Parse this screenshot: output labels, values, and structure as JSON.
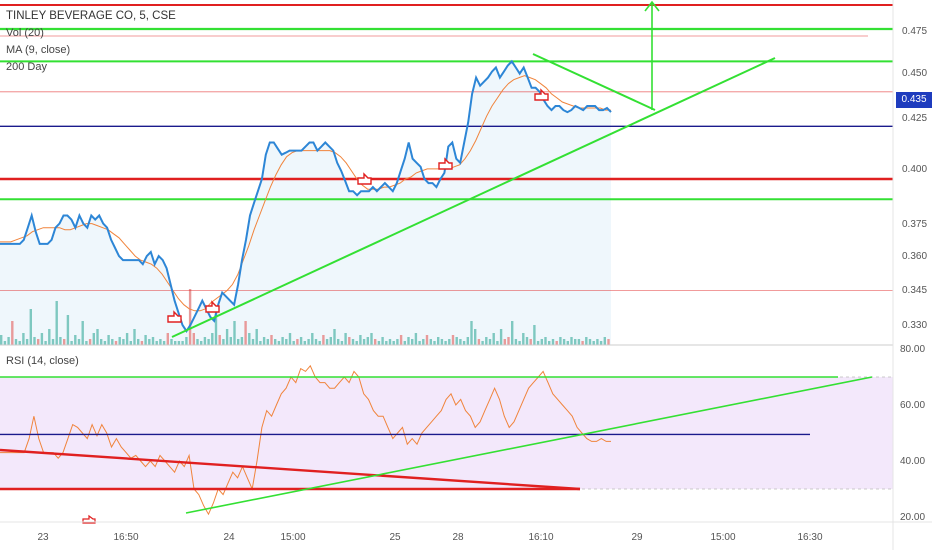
{
  "legend": {
    "title": "TINLEY BEVERAGE CO, 5, CSE",
    "vol": "Vol (20)",
    "ma": "MA (9, close)",
    "day200": "200 Day"
  },
  "rsi_label": "RSI (14, close)",
  "last_price_tag": "0.435",
  "colors": {
    "price_line": "#2d86d6",
    "ma_line": "#f0843c",
    "rsi_line": "#f0843c",
    "green": "#33e033",
    "red": "#e02020",
    "navy": "#1a1a8c",
    "volume_up": "#7ec8c0",
    "volume_down": "#e89a9a",
    "rsi_band": "#f3e8fb"
  },
  "chart_data": [
    {
      "type": "line",
      "title": "TINLEY BEVERAGE CO, 5, CSE",
      "x_labels": [
        "23",
        "16:50",
        "24",
        "15:00",
        "25",
        "28",
        "16:10",
        "29",
        "15:00",
        "16:30"
      ],
      "y_ticks": [
        "0.475",
        "0.450",
        "0.425",
        "0.400",
        "0.375",
        "0.360",
        "0.345",
        "0.330"
      ],
      "ylim": [
        0.322,
        0.483
      ],
      "series": [
        {
          "values": [
            0.37,
            0.37,
            0.37,
            0.37,
            0.37,
            0.37,
            0.372,
            0.378,
            0.384,
            0.376,
            0.37,
            0.37,
            0.37,
            0.372,
            0.378,
            0.38,
            0.384,
            0.384,
            0.382,
            0.378,
            0.384,
            0.38,
            0.378,
            0.384,
            0.382,
            0.384,
            0.38,
            0.378,
            0.372,
            0.368,
            0.364,
            0.362,
            0.362,
            0.362,
            0.362,
            0.362,
            0.36,
            0.364,
            0.366,
            0.36,
            0.364,
            0.362,
            0.358,
            0.35,
            0.342,
            0.336,
            0.33,
            0.327,
            0.33,
            0.334,
            0.338,
            0.342,
            0.338,
            0.334,
            0.332,
            0.34,
            0.346,
            0.344,
            0.342,
            0.34,
            0.35,
            0.362,
            0.372,
            0.384,
            0.39,
            0.396,
            0.402,
            0.414,
            0.42,
            0.42,
            0.417,
            0.414,
            0.415,
            0.416,
            0.416,
            0.416,
            0.416,
            0.418,
            0.42,
            0.42,
            0.416,
            0.418,
            0.42,
            0.418,
            0.416,
            0.41,
            0.406,
            0.401,
            0.396,
            0.396,
            0.394,
            0.396,
            0.396,
            0.396,
            0.398,
            0.396,
            0.398,
            0.4,
            0.398,
            0.396,
            0.4,
            0.406,
            0.412,
            0.42,
            0.412,
            0.41,
            0.408,
            0.402,
            0.4,
            0.4,
            0.398,
            0.402,
            0.405,
            0.418,
            0.42,
            0.412,
            0.41,
            0.42,
            0.43,
            0.444,
            0.452,
            0.448,
            0.45,
            0.452,
            0.455,
            0.457,
            0.452,
            0.455,
            0.458,
            0.46,
            0.457,
            0.454,
            0.457,
            0.452,
            0.447,
            0.447,
            0.445,
            0.441,
            0.438,
            0.436,
            0.438,
            0.438,
            0.436,
            0.435,
            0.436,
            0.438,
            0.437,
            0.436,
            0.438,
            0.438,
            0.438,
            0.436,
            0.436,
            0.437,
            0.435
          ]
        }
      ],
      "moving_average_values": [
        0.371,
        0.371,
        0.371,
        0.372,
        0.373,
        0.374,
        0.376,
        0.377,
        0.378,
        0.378,
        0.378,
        0.378,
        0.377,
        0.377,
        0.378,
        0.379,
        0.38,
        0.38,
        0.379,
        0.378,
        0.377,
        0.375,
        0.373,
        0.37,
        0.367,
        0.364,
        0.362,
        0.361,
        0.36,
        0.358,
        0.355,
        0.351,
        0.347,
        0.343,
        0.34,
        0.338,
        0.337,
        0.337,
        0.338,
        0.341,
        0.343,
        0.345,
        0.347,
        0.35,
        0.355,
        0.362,
        0.369,
        0.377,
        0.384,
        0.391,
        0.398,
        0.404,
        0.409,
        0.413,
        0.415,
        0.416,
        0.416,
        0.416,
        0.416,
        0.416,
        0.416,
        0.416,
        0.415,
        0.413,
        0.41,
        0.406,
        0.402,
        0.399,
        0.397,
        0.397,
        0.397,
        0.398,
        0.398,
        0.399,
        0.4,
        0.402,
        0.403,
        0.405,
        0.406,
        0.407,
        0.407,
        0.407,
        0.407,
        0.407,
        0.408,
        0.409,
        0.412,
        0.416,
        0.421,
        0.427,
        0.433,
        0.438,
        0.442,
        0.446,
        0.449,
        0.451,
        0.452,
        0.453,
        0.452,
        0.451,
        0.449,
        0.447,
        0.444,
        0.442,
        0.44,
        0.439,
        0.438,
        0.437,
        0.437,
        0.437,
        0.437,
        0.437,
        0.436,
        0.436
      ],
      "volume_values": [
        5,
        2,
        4,
        12,
        3,
        2,
        6,
        3,
        18,
        4,
        3,
        6,
        2,
        8,
        3,
        22,
        4,
        3,
        15,
        2,
        5,
        3,
        12,
        2,
        3,
        6,
        8,
        3,
        2,
        5,
        3,
        2,
        4,
        3,
        6,
        2,
        8,
        3,
        2,
        5,
        3,
        4,
        2,
        3,
        2,
        6,
        3,
        2,
        2,
        2,
        4,
        28,
        6,
        3,
        2,
        4,
        3,
        6,
        18,
        5,
        3,
        8,
        4,
        12,
        3,
        4,
        12,
        6,
        3,
        8,
        2,
        4,
        3,
        5,
        3,
        2,
        4,
        3,
        6,
        2,
        3,
        4,
        2,
        3,
        6,
        3,
        2,
        5,
        3,
        4,
        8,
        3,
        2,
        6,
        4,
        3,
        2,
        5,
        3,
        4,
        6,
        3,
        2,
        4,
        2,
        3,
        2,
        3,
        5,
        2,
        4,
        3,
        6,
        2,
        3,
        5,
        3,
        2,
        4,
        3,
        2,
        3,
        5,
        4,
        3,
        2,
        4,
        12,
        8,
        3,
        2,
        4,
        3,
        6,
        2,
        8,
        3,
        4,
        12,
        3,
        2,
        6,
        4,
        3,
        10,
        2,
        3,
        4,
        2,
        3,
        2,
        4,
        3,
        2,
        4,
        3,
        3,
        2,
        4,
        3,
        2,
        3,
        2,
        4,
        3
      ],
      "horizontal_levels": [
        0.476,
        0.46,
        0.445,
        0.428,
        0.402,
        0.392,
        0.347
      ]
    },
    {
      "type": "line",
      "title": "RSI (14, close)",
      "y_ticks": [
        "80.00",
        "60.00",
        "40.00",
        "20.00"
      ],
      "ylim": [
        18,
        82
      ],
      "band": [
        30,
        70
      ],
      "series": [
        {
          "values": [
            43,
            43,
            43,
            43,
            43,
            43,
            48,
            56,
            48,
            43,
            43,
            43,
            41,
            43,
            48,
            53,
            52,
            50,
            48,
            53,
            49,
            53,
            50,
            45,
            48,
            45,
            43,
            41,
            42,
            40,
            38,
            40,
            38,
            42,
            40,
            38,
            36,
            40,
            38,
            42,
            30,
            28,
            24,
            21,
            25,
            30,
            28,
            32,
            36,
            34,
            38,
            34,
            30,
            40,
            52,
            58,
            56,
            60,
            64,
            66,
            70,
            68,
            73,
            72,
            74,
            70,
            68,
            68,
            66,
            66,
            68,
            70,
            68,
            72,
            70,
            64,
            62,
            58,
            56,
            56,
            52,
            48,
            50,
            52,
            46,
            48,
            46,
            50,
            52,
            54,
            56,
            58,
            62,
            64,
            60,
            62,
            58,
            56,
            52,
            54,
            58,
            62,
            66,
            62,
            56,
            52,
            54,
            58,
            62,
            66,
            68,
            70,
            72,
            68,
            64,
            62,
            60,
            58,
            56,
            52,
            50,
            48,
            47,
            47,
            48,
            47,
            47
          ]
        }
      ],
      "horizontal_levels": [
        70,
        49.5,
        30
      ]
    }
  ]
}
